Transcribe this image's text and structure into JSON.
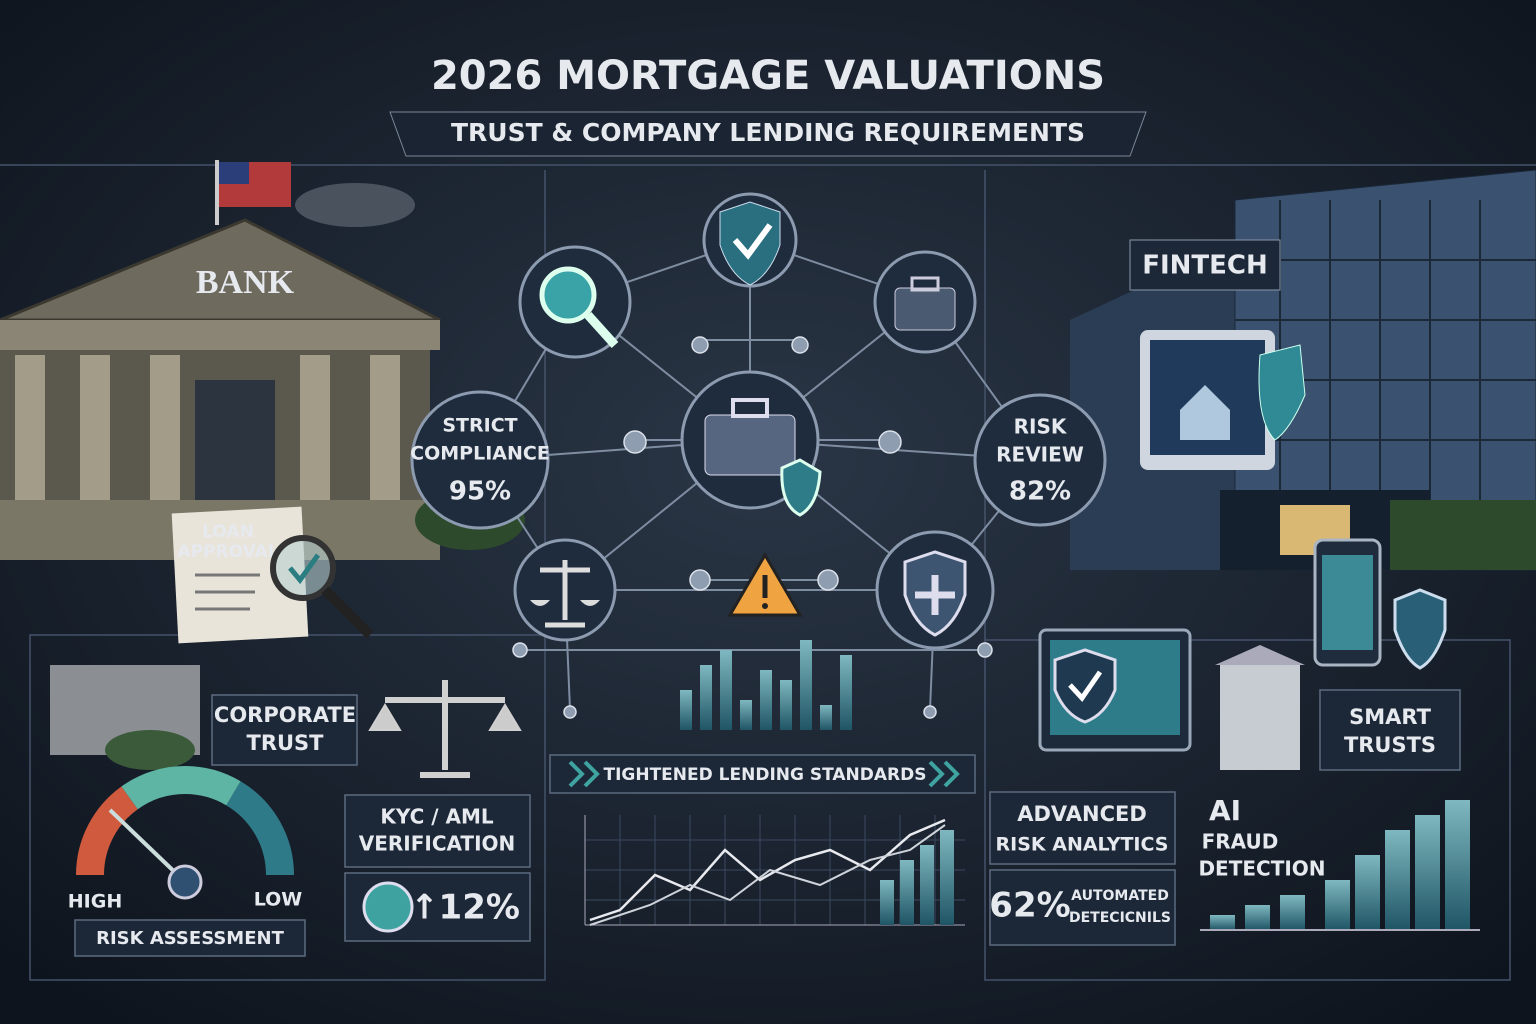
{
  "header": {
    "title": "2026 MORTGAGE VALUATIONS",
    "subtitle": "TRUST & COMPANY LENDING REQUIREMENTS"
  },
  "buildings": {
    "bank": "BANK",
    "fintech": "FINTECH"
  },
  "network": {
    "compliance": {
      "line1": "STRICT",
      "line2": "COMPLIANCE",
      "value": "95%"
    },
    "risk_review": {
      "line1": "RISK",
      "line2": "REVIEW",
      "value": "82%"
    }
  },
  "loan": {
    "line1": "LOAN",
    "line2": "APPROVAL"
  },
  "corporate_trust": {
    "line1": "CORPORATE",
    "line2": "TRUST"
  },
  "smart_trusts": {
    "line1": "SMART",
    "line2": "TRUSTS"
  },
  "banner": "TIGHTENED LENDING STANDARDS",
  "risk_gauge": {
    "high": "HIGH",
    "low": "LOW",
    "label": "RISK ASSESSMENT"
  },
  "kyc": {
    "line1": "KYC / AML",
    "line2": "VERIFICATION",
    "value": "↑12%"
  },
  "analytics": {
    "line1": "ADVANCED",
    "line2": "RISK ANALYTICS",
    "value": "62%",
    "note1": "AUTOMATED",
    "note2": "DETECICNILS"
  },
  "fraud": {
    "line1": "AI",
    "line2": "FRAUD",
    "line3": "DETECTION"
  }
}
